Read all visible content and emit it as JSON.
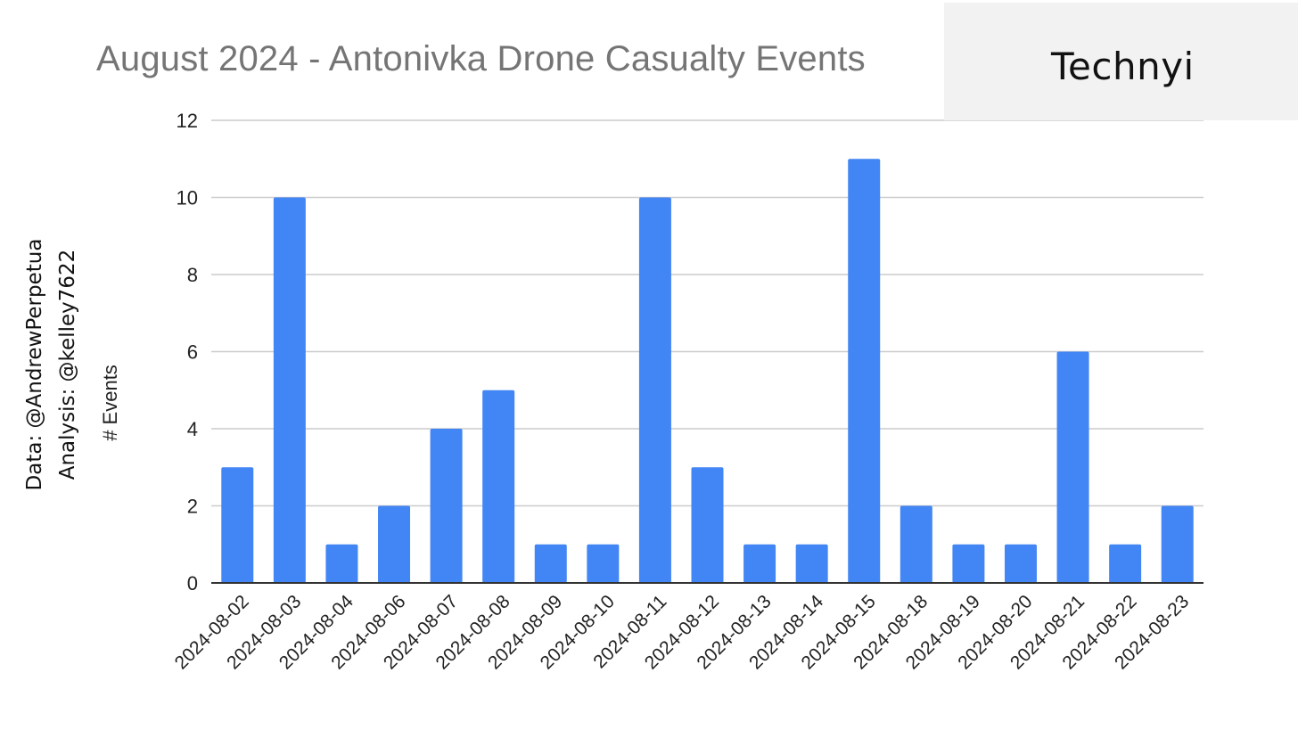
{
  "logo": {
    "text": "Technyi"
  },
  "side_notes": {
    "data": "Data: @AndrewPerpetua",
    "analysis": "Analysis: @kelley7622"
  },
  "colors": {
    "bar": "#4285f4",
    "grid": "#cccccc",
    "axis": "#333333",
    "title": "#757575",
    "logo_box": "#f3f2f2"
  },
  "chart_data": {
    "type": "bar",
    "title": "August 2024 - Antonivka Drone Casualty Events",
    "xlabel": "",
    "ylabel": "# Events",
    "ylim": [
      0,
      12
    ],
    "yticks": [
      0,
      2,
      4,
      6,
      8,
      10,
      12
    ],
    "grid": true,
    "legend": "none",
    "categories": [
      "2024-08-02",
      "2024-08-03",
      "2024-08-04",
      "2024-08-06",
      "2024-08-07",
      "2024-08-08",
      "2024-08-09",
      "2024-08-10",
      "2024-08-11",
      "2024-08-12",
      "2024-08-13",
      "2024-08-14",
      "2024-08-15",
      "2024-08-18",
      "2024-08-19",
      "2024-08-20",
      "2024-08-21",
      "2024-08-22",
      "2024-08-23"
    ],
    "values": [
      3,
      10,
      1,
      2,
      4,
      5,
      1,
      1,
      10,
      3,
      1,
      1,
      11,
      2,
      1,
      1,
      6,
      1,
      2
    ]
  }
}
